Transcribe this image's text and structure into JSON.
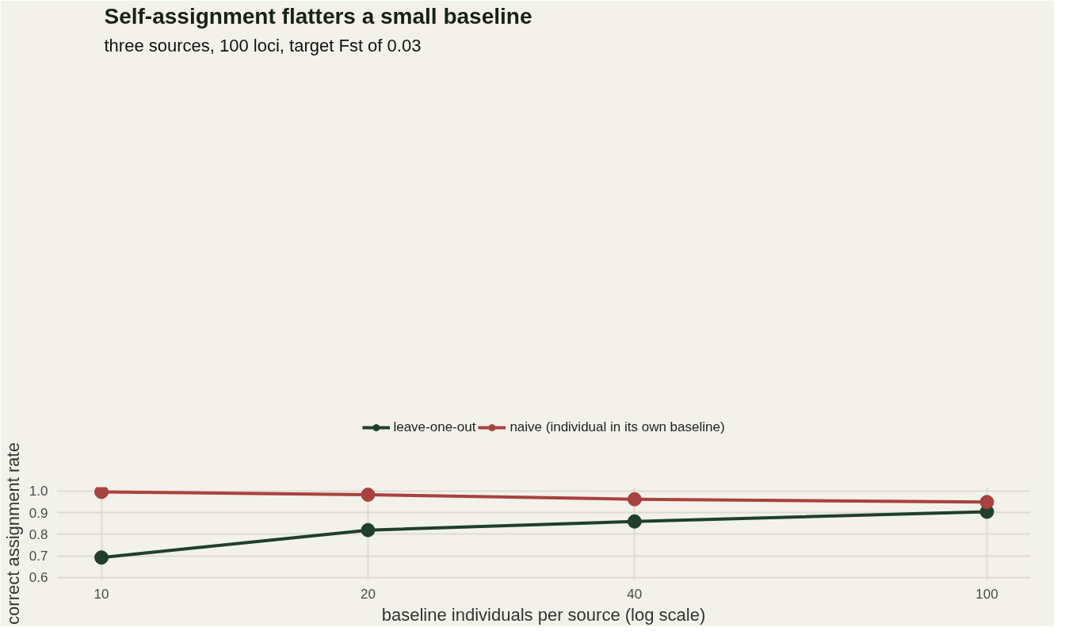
{
  "chart_data": {
    "type": "line",
    "title": "Self-assignment flatters a small baseline",
    "subtitle": "three sources, 100 loci, target Fst of 0.03",
    "xlabel": "baseline individuals per source (log scale)",
    "ylabel": "correct assignment rate",
    "x": [
      10,
      20,
      40,
      100
    ],
    "series": [
      {
        "name": "leave-one-out",
        "color": "#1f3f2b",
        "values": [
          0.692,
          0.819,
          0.859,
          0.904
        ]
      },
      {
        "name": "naive (individual in its own baseline)",
        "color": "#a84240",
        "values": [
          0.996,
          0.983,
          0.962,
          0.949
        ]
      }
    ],
    "log": "x",
    "xlim": [
      8.9,
      112
    ],
    "xticks": [
      10,
      20,
      40,
      100
    ],
    "ylim": [
      0.588,
      1.018
    ],
    "yticks": [
      0.6,
      0.7,
      0.8,
      0.9,
      {
        "value": 1.0,
        "label": "1.0"
      }
    ],
    "grid": true,
    "legend": "top",
    "marker": "circle",
    "line_style": "solid"
  }
}
